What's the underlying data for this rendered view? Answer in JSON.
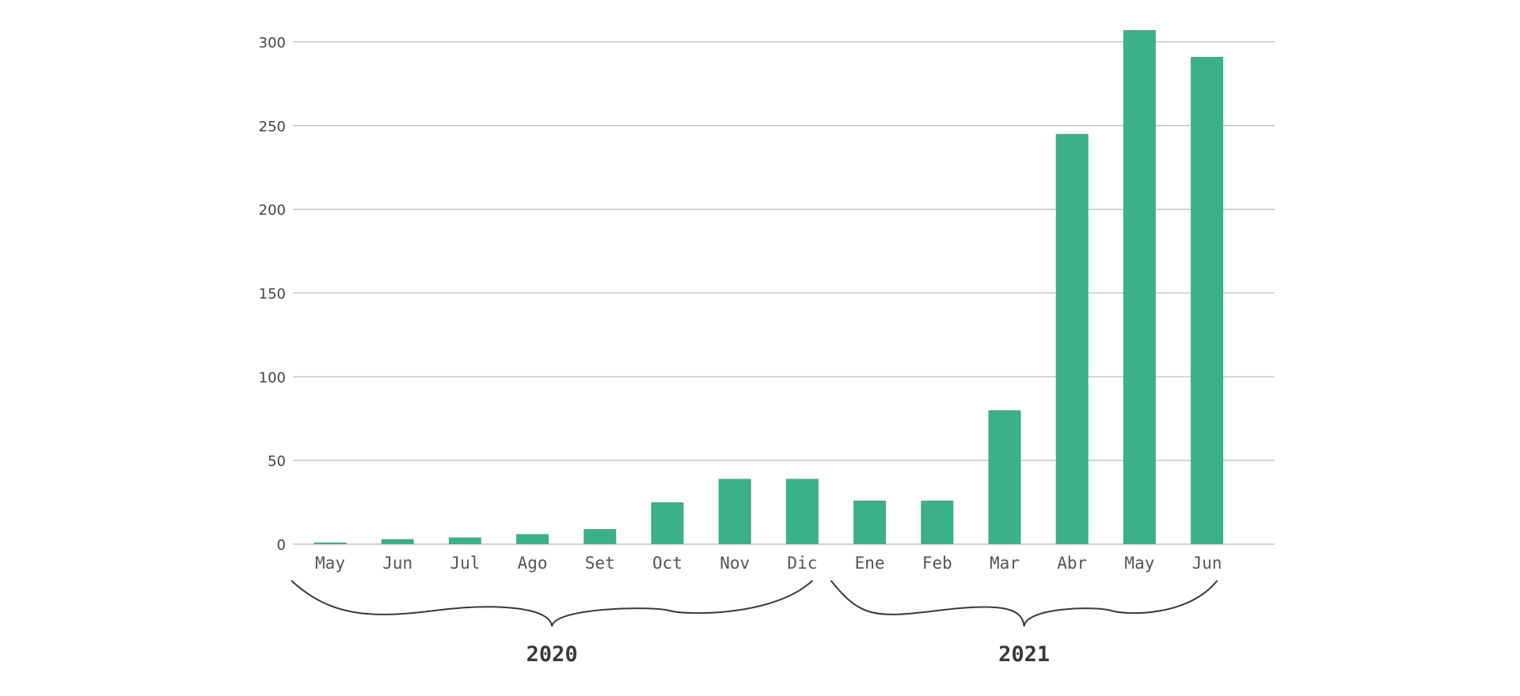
{
  "chart_data": {
    "type": "bar",
    "categories": [
      "May",
      "Jun",
      "Jul",
      "Ago",
      "Set",
      "Oct",
      "Nov",
      "Dic",
      "Ene",
      "Feb",
      "Mar",
      "Abr",
      "May",
      "Jun"
    ],
    "values": [
      1,
      3,
      4,
      6,
      9,
      25,
      39,
      39,
      26,
      26,
      80,
      245,
      307,
      291
    ],
    "groups": [
      {
        "label": "2020",
        "start": 0,
        "end": 7
      },
      {
        "label": "2021",
        "start": 8,
        "end": 13
      }
    ],
    "ylim": [
      0,
      310
    ],
    "yticks": [
      0,
      50,
      100,
      150,
      200,
      250,
      300
    ],
    "grid": true,
    "colors": {
      "bar": "#3ab08b"
    },
    "title": "",
    "xlabel": "",
    "ylabel": ""
  }
}
